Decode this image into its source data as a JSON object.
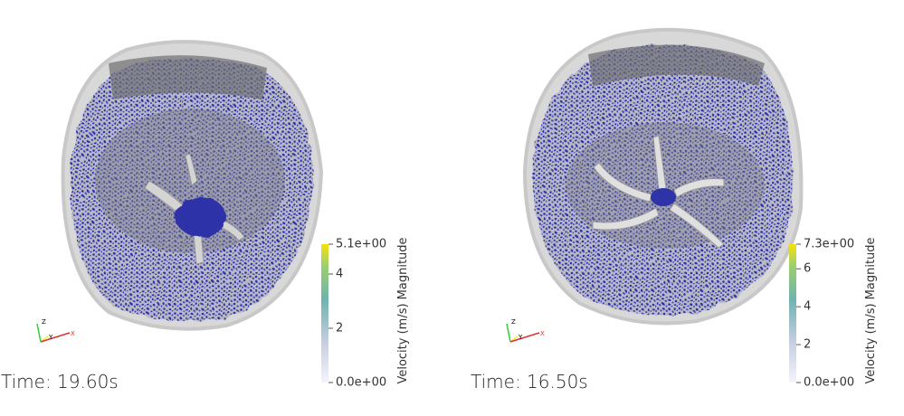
{
  "panels": [
    {
      "time_label": "Time: 19.60s",
      "colorbar": {
        "title": "Velocity (m/s) Magnitude",
        "range": [
          0,
          5.1
        ],
        "ticks": [
          {
            "value": 0,
            "label": "0.0e+00"
          },
          2,
          4,
          {
            "value": 5.1,
            "label": "5.1e+00"
          }
        ]
      },
      "axes": {
        "z": "Z",
        "y": "Y",
        "x": "X"
      }
    },
    {
      "time_label": "Time: 16.50s",
      "colorbar": {
        "title": "Velocity (m/s) Magnitude",
        "range": [
          0,
          7.3
        ],
        "ticks": [
          {
            "value": 0,
            "label": "0.0e+00"
          },
          2,
          4,
          6,
          {
            "value": 7.3,
            "label": "7.3e+00"
          }
        ]
      },
      "axes": {
        "z": "Z",
        "y": "Y",
        "x": "X"
      }
    }
  ]
}
